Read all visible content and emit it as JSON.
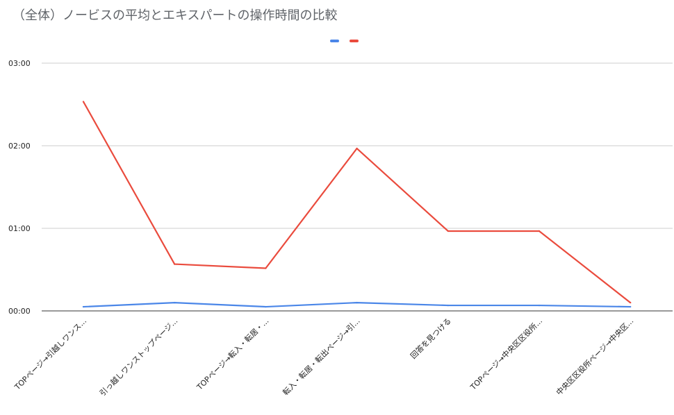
{
  "chart_data": {
    "type": "line",
    "title": "（全体）ノービスの平均とエキスパートの操作時間の比較",
    "categories": [
      "TOPページ→引越しワンス...",
      "引っ越しワンストップページ...",
      "TOPページ→転入・転居・...",
      "転入・転居・転出ページ→引...",
      "回答を見つける",
      "TOPページ→中央区区役所...",
      "中央区区役所ページ→中央区..."
    ],
    "y_ticks": [
      "00:00",
      "01:00",
      "02:00",
      "03:00"
    ],
    "ylim": [
      0,
      180
    ],
    "y_unit": "seconds",
    "grid": true,
    "legend_position": "top",
    "series": [
      {
        "values": [
          3,
          6,
          3,
          6,
          4,
          4,
          3
        ],
        "color": "#4a86e8"
      },
      {
        "values": [
          152,
          34,
          31,
          118,
          58,
          58,
          6
        ],
        "color": "#ea4b3d"
      }
    ]
  }
}
